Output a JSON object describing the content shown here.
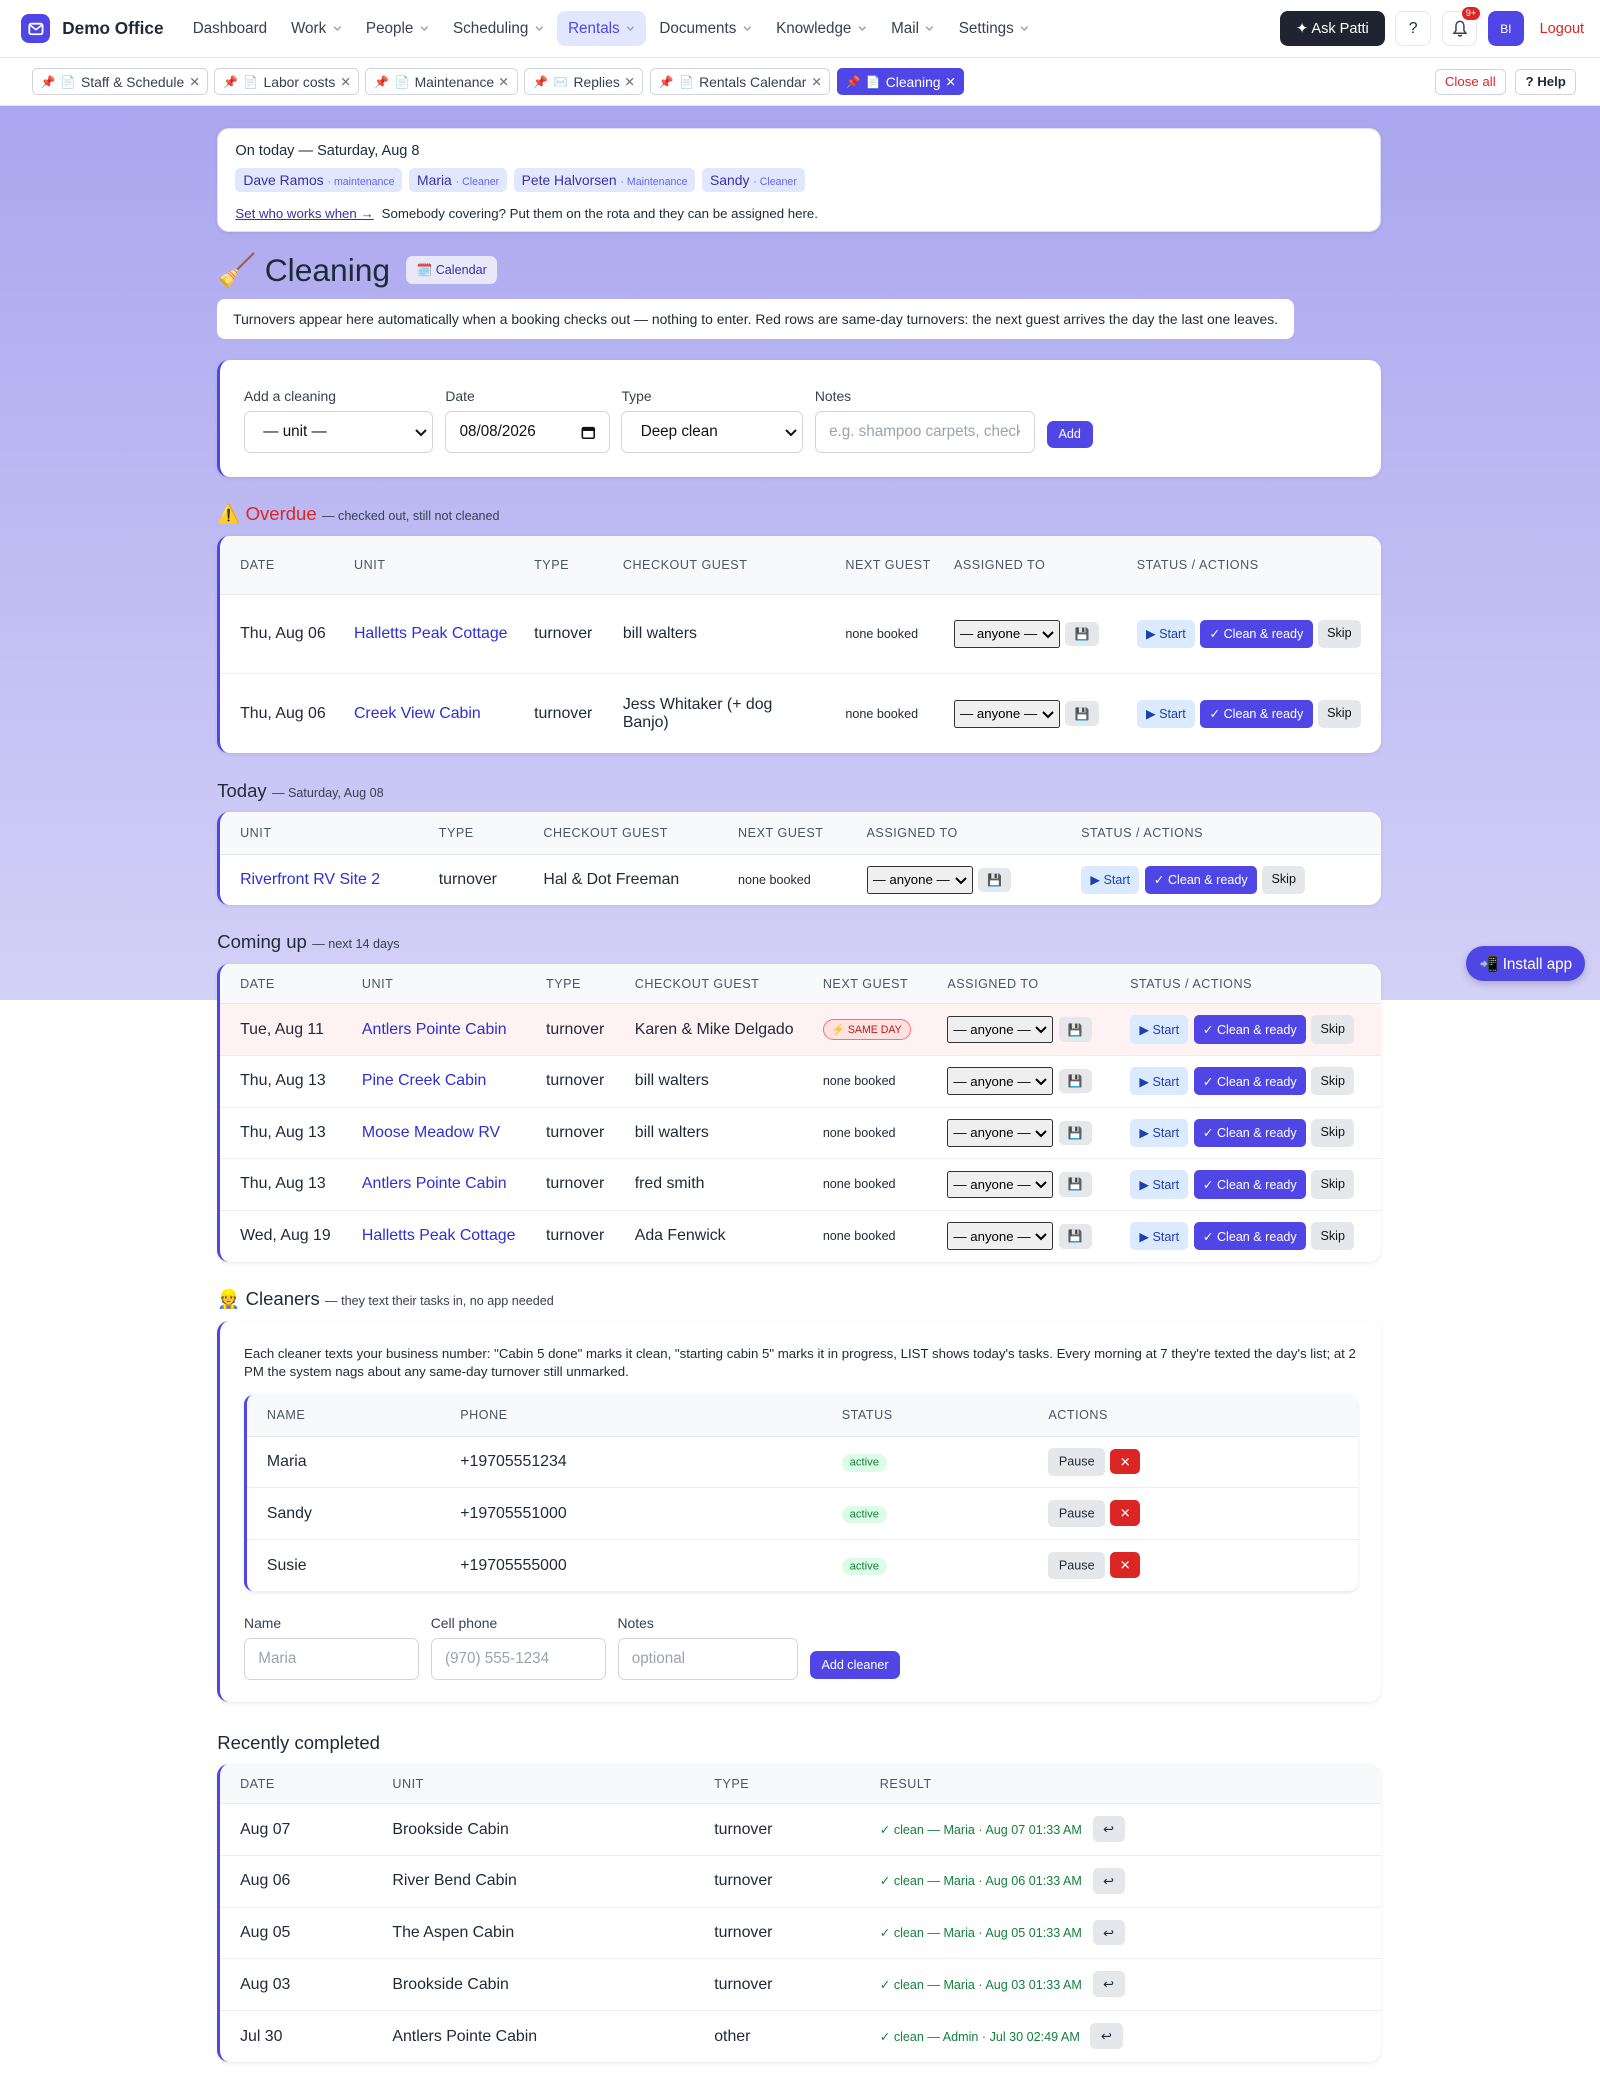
{
  "nav": {
    "brand": "Demo Office",
    "items": [
      {
        "label": "Dashboard"
      },
      {
        "label": "Work",
        "menu": true
      },
      {
        "label": "People",
        "menu": true
      },
      {
        "label": "Scheduling",
        "menu": true
      },
      {
        "label": "Rentals",
        "menu": true,
        "active": true
      },
      {
        "label": "Documents",
        "menu": true
      },
      {
        "label": "Knowledge",
        "menu": true
      },
      {
        "label": "Mail",
        "menu": true
      },
      {
        "label": "Settings",
        "menu": true
      }
    ],
    "ask": "✦ Ask Patti",
    "help": "?",
    "badge": "9+",
    "avatar": "BI",
    "logout": "Logout"
  },
  "tabs": {
    "pin": "📌",
    "items": [
      {
        "icon": "📄",
        "label": "Staff & Schedule"
      },
      {
        "icon": "📄",
        "label": "Labor costs"
      },
      {
        "icon": "📄",
        "label": "Maintenance"
      },
      {
        "icon": "✉️",
        "label": "Replies"
      },
      {
        "icon": "📄",
        "label": "Rentals Calendar"
      },
      {
        "icon": "📄",
        "label": "Cleaning",
        "active": true
      }
    ],
    "close_all": "Close all",
    "help": "? Help"
  },
  "on_today": {
    "title": "On today — Saturday, Aug 8",
    "staff": [
      {
        "name": "Dave Ramos",
        "role": "· maintenance"
      },
      {
        "name": "Maria",
        "role": "· Cleaner"
      },
      {
        "name": "Pete Halvorsen",
        "role": "· Maintenance"
      },
      {
        "name": "Sandy",
        "role": "· Cleaner"
      }
    ],
    "link": "Set who works when →",
    "note": "Somebody covering? Put them on the rota and they can be assigned here."
  },
  "header": {
    "icon": "🧹",
    "title": "Cleaning",
    "calendar": "🗓️ Calendar",
    "info": "Turnovers appear here automatically when a booking checks out — nothing to enter. Red rows are same-day turnovers: the next guest arrives the day the last one leaves."
  },
  "add_form": {
    "unit_label": "Add a cleaning",
    "unit": "— unit —",
    "date_label": "Date",
    "date": "08/08/2026",
    "type_label": "Type",
    "type": "Deep clean",
    "notes_label": "Notes",
    "notes_placeholder": "e.g. shampoo carpets, check",
    "button": "Add"
  },
  "row_actions": {
    "assign": "— anyone —",
    "save": "💾",
    "start": "▶ Start",
    "ready": "✓ Clean & ready",
    "skip": "Skip"
  },
  "overdue": {
    "icon": "⚠️",
    "title": "Overdue",
    "subtitle": "— checked out, still not cleaned",
    "columns": [
      "DATE",
      "UNIT",
      "TYPE",
      "CHECKOUT GUEST",
      "NEXT GUEST",
      "ASSIGNED TO",
      "STATUS / ACTIONS"
    ],
    "rows": [
      {
        "date": "Thu, Aug 06",
        "unit": "Halletts Peak Cottage",
        "type": "turnover",
        "guest": "bill walters",
        "next": "none booked"
      },
      {
        "date": "Thu, Aug 06",
        "unit": "Creek View Cabin",
        "type": "turnover",
        "guest": "Jess Whitaker (+ dog Banjo)",
        "next": "none booked"
      }
    ]
  },
  "today": {
    "title": "Today",
    "subtitle": "— Saturday, Aug 08",
    "columns": [
      "UNIT",
      "TYPE",
      "CHECKOUT GUEST",
      "NEXT GUEST",
      "ASSIGNED TO",
      "STATUS / ACTIONS"
    ],
    "rows": [
      {
        "unit": "Riverfront RV Site 2",
        "type": "turnover",
        "guest": "Hal & Dot Freeman",
        "next": "none booked"
      }
    ]
  },
  "coming_up": {
    "title": "Coming up",
    "subtitle": "— next 14 days",
    "columns": [
      "DATE",
      "UNIT",
      "TYPE",
      "CHECKOUT GUEST",
      "NEXT GUEST",
      "ASSIGNED TO",
      "STATUS / ACTIONS"
    ],
    "rows": [
      {
        "date": "Tue, Aug 11",
        "unit": "Antlers Pointe Cabin",
        "type": "turnover",
        "guest": "Karen & Mike Delgado",
        "next": "⚡ SAME DAY",
        "same_day": true
      },
      {
        "date": "Thu, Aug 13",
        "unit": "Pine Creek Cabin",
        "type": "turnover",
        "guest": "bill walters",
        "next": "none booked"
      },
      {
        "date": "Thu, Aug 13",
        "unit": "Moose Meadow RV",
        "type": "turnover",
        "guest": "bill walters",
        "next": "none booked"
      },
      {
        "date": "Thu, Aug 13",
        "unit": "Antlers Pointe Cabin",
        "type": "turnover",
        "guest": "fred smith",
        "next": "none booked"
      },
      {
        "date": "Wed, Aug 19",
        "unit": "Halletts Peak Cottage",
        "type": "turnover",
        "guest": "Ada Fenwick",
        "next": "none booked"
      }
    ]
  },
  "cleaners": {
    "icon": "👷",
    "title": "Cleaners",
    "subtitle": "— they text their tasks in, no app needed",
    "description": "Each cleaner texts your business number: \"Cabin 5 done\" marks it clean, \"starting cabin 5\" marks it in progress, LIST shows today's tasks. Every morning at 7 they're texted the day's list; at 2 PM the system nags about any same-day turnover still unmarked.",
    "columns": [
      "NAME",
      "PHONE",
      "STATUS",
      "ACTIONS"
    ],
    "rows": [
      {
        "name": "Maria",
        "phone": "+19705551234",
        "status": "active"
      },
      {
        "name": "Sandy",
        "phone": "+19705551000",
        "status": "active"
      },
      {
        "name": "Susie",
        "phone": "+19705555000",
        "status": "active"
      }
    ],
    "pause": "Pause",
    "remove": "✕",
    "form": {
      "name_label": "Name",
      "name_placeholder": "Maria",
      "phone_label": "Cell phone",
      "phone_placeholder": "(970) 555-1234",
      "notes_label": "Notes",
      "notes_placeholder": "optional",
      "button": "Add cleaner"
    }
  },
  "recent": {
    "title": "Recently completed",
    "columns": [
      "DATE",
      "UNIT",
      "TYPE",
      "RESULT"
    ],
    "rows": [
      {
        "date": "Aug 07",
        "unit": "Brookside Cabin",
        "type": "turnover",
        "result": "✓ clean — Maria · Aug 07 01:33 AM"
      },
      {
        "date": "Aug 06",
        "unit": "River Bend Cabin",
        "type": "turnover",
        "result": "✓ clean — Maria · Aug 06 01:33 AM"
      },
      {
        "date": "Aug 05",
        "unit": "The Aspen Cabin",
        "type": "turnover",
        "result": "✓ clean — Maria · Aug 05 01:33 AM"
      },
      {
        "date": "Aug 03",
        "unit": "Brookside Cabin",
        "type": "turnover",
        "result": "✓ clean — Maria · Aug 03 01:33 AM"
      },
      {
        "date": "Jul 30",
        "unit": "Antlers Pointe Cabin",
        "type": "other",
        "result": "✓ clean — Admin · Jul 30 02:49 AM"
      }
    ],
    "undo": "↩"
  },
  "install": "📲 Install app"
}
